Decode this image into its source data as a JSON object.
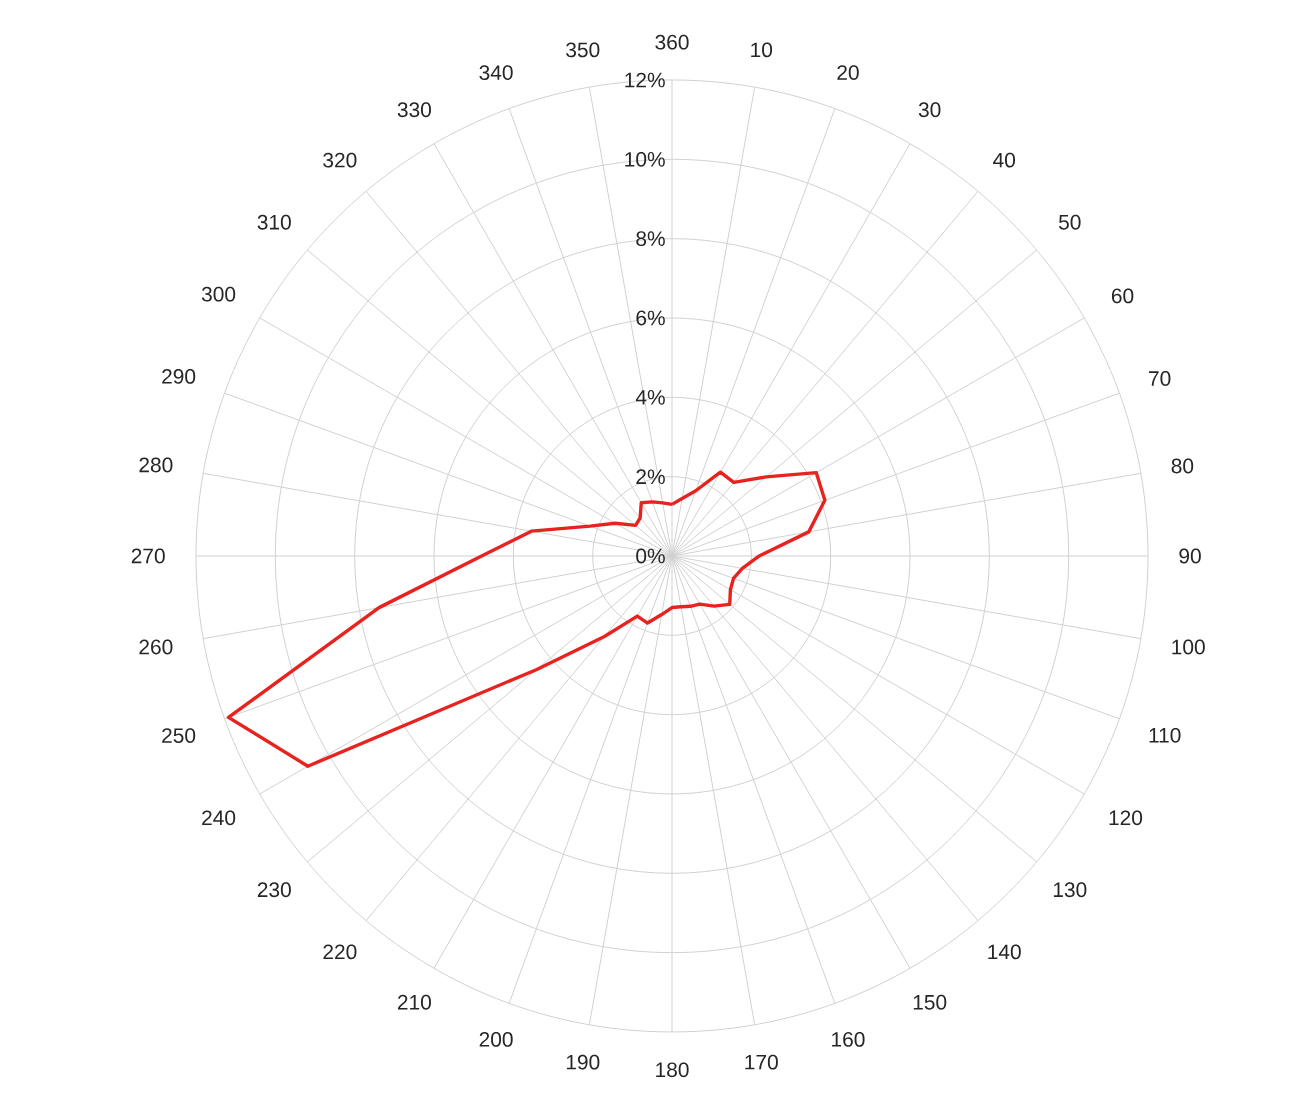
{
  "chart_data": {
    "type": "radar",
    "categories": [
      "360",
      "10",
      "20",
      "30",
      "40",
      "50",
      "60",
      "70",
      "80",
      "90",
      "100",
      "110",
      "120",
      "130",
      "140",
      "150",
      "160",
      "170",
      "180",
      "190",
      "200",
      "210",
      "220",
      "230",
      "240",
      "250",
      "260",
      "270",
      "280",
      "290",
      "300",
      "310",
      "320",
      "330",
      "340",
      "350"
    ],
    "series": [
      {
        "color": "#e8231f",
        "values": [
          1.3,
          1.47,
          1.75,
          2.44,
          2.42,
          3.1,
          4.2,
          4.1,
          3.5,
          2.2,
          1.8,
          1.65,
          1.7,
          1.9,
          1.65,
          1.4,
          1.35,
          1.3,
          1.3,
          1.5,
          1.8,
          1.75,
          2.65,
          4.45,
          10.6,
          11.9,
          7.5,
          4.8,
          3.6,
          2.2,
          1.65,
          1.2,
          1.25,
          1.55,
          1.45,
          1.36
        ]
      }
    ],
    "ylim": [
      0,
      12
    ],
    "yticks": [
      {
        "value": 0,
        "label": "0%"
      },
      {
        "value": 2,
        "label": "2%"
      },
      {
        "value": 4,
        "label": "4%"
      },
      {
        "value": 6,
        "label": "6%"
      },
      {
        "value": 8,
        "label": "8%"
      },
      {
        "value": 10,
        "label": "10%"
      },
      {
        "value": 12,
        "label": "12%"
      }
    ],
    "grid": true,
    "line_style": "solid"
  }
}
